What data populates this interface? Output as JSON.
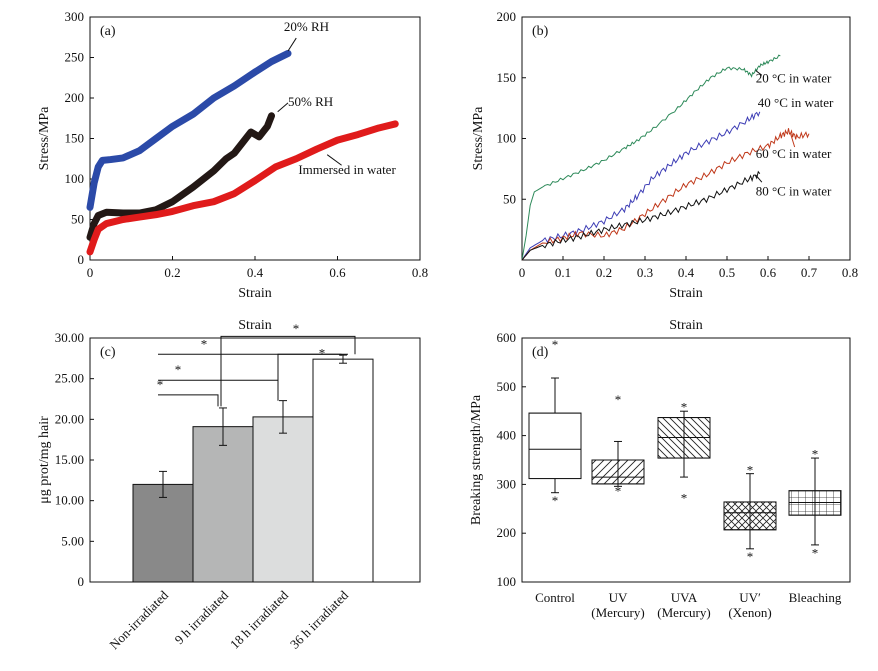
{
  "chart_data": [
    {
      "panel": "(a)",
      "type": "line",
      "xlabel": "Strain",
      "ylabel": "Stress/MPa",
      "xlim": [
        0,
        0.8
      ],
      "ylim": [
        0,
        300
      ],
      "xticks": [
        "0",
        "0.2",
        "0.4",
        "0.6",
        "0.8"
      ],
      "yticks": [
        "0",
        "50",
        "100",
        "150",
        "200",
        "250",
        "300"
      ],
      "series": [
        {
          "name": "20% RH",
          "color": "#2b4aa8",
          "points": [
            [
              0,
              65
            ],
            [
              0.01,
              95
            ],
            [
              0.02,
              115
            ],
            [
              0.03,
              123
            ],
            [
              0.05,
              124
            ],
            [
              0.08,
              126
            ],
            [
              0.12,
              135
            ],
            [
              0.16,
              150
            ],
            [
              0.2,
              165
            ],
            [
              0.25,
              180
            ],
            [
              0.3,
              200
            ],
            [
              0.35,
              215
            ],
            [
              0.4,
              232
            ],
            [
              0.44,
              245
            ],
            [
              0.48,
              255
            ]
          ]
        },
        {
          "name": "50% RH",
          "color": "#231815",
          "points": [
            [
              0,
              28
            ],
            [
              0.01,
              45
            ],
            [
              0.02,
              55
            ],
            [
              0.04,
              59
            ],
            [
              0.08,
              58
            ],
            [
              0.12,
              58
            ],
            [
              0.16,
              62
            ],
            [
              0.2,
              72
            ],
            [
              0.25,
              90
            ],
            [
              0.3,
              110
            ],
            [
              0.33,
              125
            ],
            [
              0.35,
              132
            ],
            [
              0.37,
              145
            ],
            [
              0.39,
              158
            ],
            [
              0.41,
              152
            ],
            [
              0.43,
              165
            ],
            [
              0.44,
              178
            ]
          ]
        },
        {
          "name": "Immersed in water",
          "color": "#e01b1b",
          "points": [
            [
              0,
              10
            ],
            [
              0.01,
              25
            ],
            [
              0.02,
              38
            ],
            [
              0.04,
              45
            ],
            [
              0.08,
              50
            ],
            [
              0.12,
              53
            ],
            [
              0.16,
              56
            ],
            [
              0.2,
              60
            ],
            [
              0.25,
              67
            ],
            [
              0.3,
              72
            ],
            [
              0.35,
              82
            ],
            [
              0.4,
              98
            ],
            [
              0.45,
              115
            ],
            [
              0.5,
              125
            ],
            [
              0.55,
              137
            ],
            [
              0.6,
              148
            ],
            [
              0.65,
              155
            ],
            [
              0.7,
              163
            ],
            [
              0.74,
              168
            ]
          ]
        }
      ],
      "annotations": [
        "20% RH",
        "50% RH",
        "Immersed in water"
      ]
    },
    {
      "panel": "(b)",
      "type": "line",
      "xlabel": "Strain",
      "ylabel": "Stress/MPa",
      "xlim": [
        0,
        0.8
      ],
      "ylim": [
        0,
        200
      ],
      "xticks": [
        "0",
        "0.1",
        "0.2",
        "0.3",
        "0.4",
        "0.5",
        "0.6",
        "0.7",
        "0.8"
      ],
      "yticks": [
        "50",
        "100",
        "150",
        "200"
      ],
      "series": [
        {
          "name": "20 °C in water",
          "color": "#2e8a5a",
          "points": [
            [
              0,
              0
            ],
            [
              0.01,
              20
            ],
            [
              0.02,
              45
            ],
            [
              0.03,
              56
            ],
            [
              0.05,
              60
            ],
            [
              0.1,
              67
            ],
            [
              0.15,
              74
            ],
            [
              0.2,
              82
            ],
            [
              0.25,
              92
            ],
            [
              0.28,
              98
            ],
            [
              0.32,
              108
            ],
            [
              0.38,
              125
            ],
            [
              0.42,
              138
            ],
            [
              0.46,
              150
            ],
            [
              0.5,
              158
            ],
            [
              0.54,
              157
            ],
            [
              0.56,
              152
            ],
            [
              0.58,
              160
            ],
            [
              0.6,
              163
            ],
            [
              0.63,
              168
            ]
          ]
        },
        {
          "name": "40 °C in water",
          "color": "#3d3db5",
          "points": [
            [
              0,
              0
            ],
            [
              0.02,
              10
            ],
            [
              0.05,
              16
            ],
            [
              0.1,
              20
            ],
            [
              0.15,
              25
            ],
            [
              0.2,
              32
            ],
            [
              0.25,
              42
            ],
            [
              0.28,
              52
            ],
            [
              0.32,
              68
            ],
            [
              0.36,
              78
            ],
            [
              0.4,
              88
            ],
            [
              0.45,
              97
            ],
            [
              0.5,
              105
            ],
            [
              0.55,
              115
            ],
            [
              0.58,
              122
            ]
          ]
        },
        {
          "name": "60 °C in water",
          "color": "#c0391b",
          "points": [
            [
              0,
              0
            ],
            [
              0.02,
              8
            ],
            [
              0.05,
              14
            ],
            [
              0.1,
              18
            ],
            [
              0.14,
              22
            ],
            [
              0.2,
              20
            ],
            [
              0.25,
              26
            ],
            [
              0.3,
              38
            ],
            [
              0.35,
              50
            ],
            [
              0.4,
              62
            ],
            [
              0.45,
              70
            ],
            [
              0.5,
              80
            ],
            [
              0.55,
              88
            ],
            [
              0.6,
              94
            ],
            [
              0.63,
              102
            ],
            [
              0.65,
              106
            ],
            [
              0.67,
              101
            ],
            [
              0.7,
              104
            ]
          ]
        },
        {
          "name": "80 °C in water",
          "color": "#111111",
          "points": [
            [
              0,
              0
            ],
            [
              0.02,
              8
            ],
            [
              0.05,
              12
            ],
            [
              0.1,
              16
            ],
            [
              0.15,
              20
            ],
            [
              0.2,
              25
            ],
            [
              0.25,
              29
            ],
            [
              0.3,
              33
            ],
            [
              0.35,
              38
            ],
            [
              0.4,
              44
            ],
            [
              0.45,
              50
            ],
            [
              0.5,
              58
            ],
            [
              0.55,
              66
            ],
            [
              0.58,
              71
            ]
          ]
        }
      ],
      "annotations": [
        "20 °C in water",
        "40 °C in water",
        "60 °C in water",
        "80 °C in water"
      ]
    },
    {
      "panel": "(c)",
      "type": "bar",
      "title": "Strain",
      "ylabel": "μg prot/mg hair",
      "ylim": [
        0,
        30
      ],
      "yticks": [
        "0",
        "5.00",
        "10.00",
        "15.00",
        "20.00",
        "25.00",
        "30.00"
      ],
      "categories": [
        "Non-irradiated",
        "9 h irradiated",
        "18 h irradiated",
        "36 h irradiated"
      ],
      "values": [
        12.0,
        19.1,
        20.3,
        27.4
      ],
      "errors": [
        1.6,
        2.3,
        2.0,
        0.5
      ],
      "colors": [
        "#898989",
        "#b5b6b6",
        "#dcdddd",
        "#ffffff"
      ],
      "significance": [
        "*",
        "*",
        "*",
        "*",
        "*"
      ]
    },
    {
      "panel": "(d)",
      "type": "box",
      "title": "Strain",
      "ylabel": "Breaking strength/MPa",
      "ylim": [
        100,
        600
      ],
      "yticks": [
        "100",
        "200",
        "300",
        "400",
        "500",
        "600"
      ],
      "categories": [
        "Control",
        "UV\n(Mercury)",
        "UVA\n(Mercury)",
        "UV′\n(Xenon)",
        "Bleaching"
      ],
      "boxes": [
        {
          "whisker_low": 283,
          "q1": 312,
          "median": 372,
          "q3": 446,
          "whisker_high": 518,
          "outliers": [
            590,
            270
          ]
        },
        {
          "whisker_low": 296,
          "q1": 301,
          "median": 315,
          "q3": 350,
          "whisker_high": 388,
          "outliers": [
            477,
            290
          ]
        },
        {
          "whisker_low": 315,
          "q1": 354,
          "median": 396,
          "q3": 437,
          "whisker_high": 450,
          "outliers": [
            462,
            275
          ]
        },
        {
          "whisker_low": 168,
          "q1": 207,
          "median": 242,
          "q3": 264,
          "whisker_high": 322,
          "outliers": [
            333,
            155
          ]
        },
        {
          "whisker_low": 176,
          "q1": 237,
          "median": 263,
          "q3": 287,
          "whisker_high": 354,
          "outliers": [
            365,
            162
          ]
        }
      ],
      "hatch": [
        "none",
        "diag-right",
        "diag-left",
        "cross",
        "grid"
      ]
    }
  ]
}
